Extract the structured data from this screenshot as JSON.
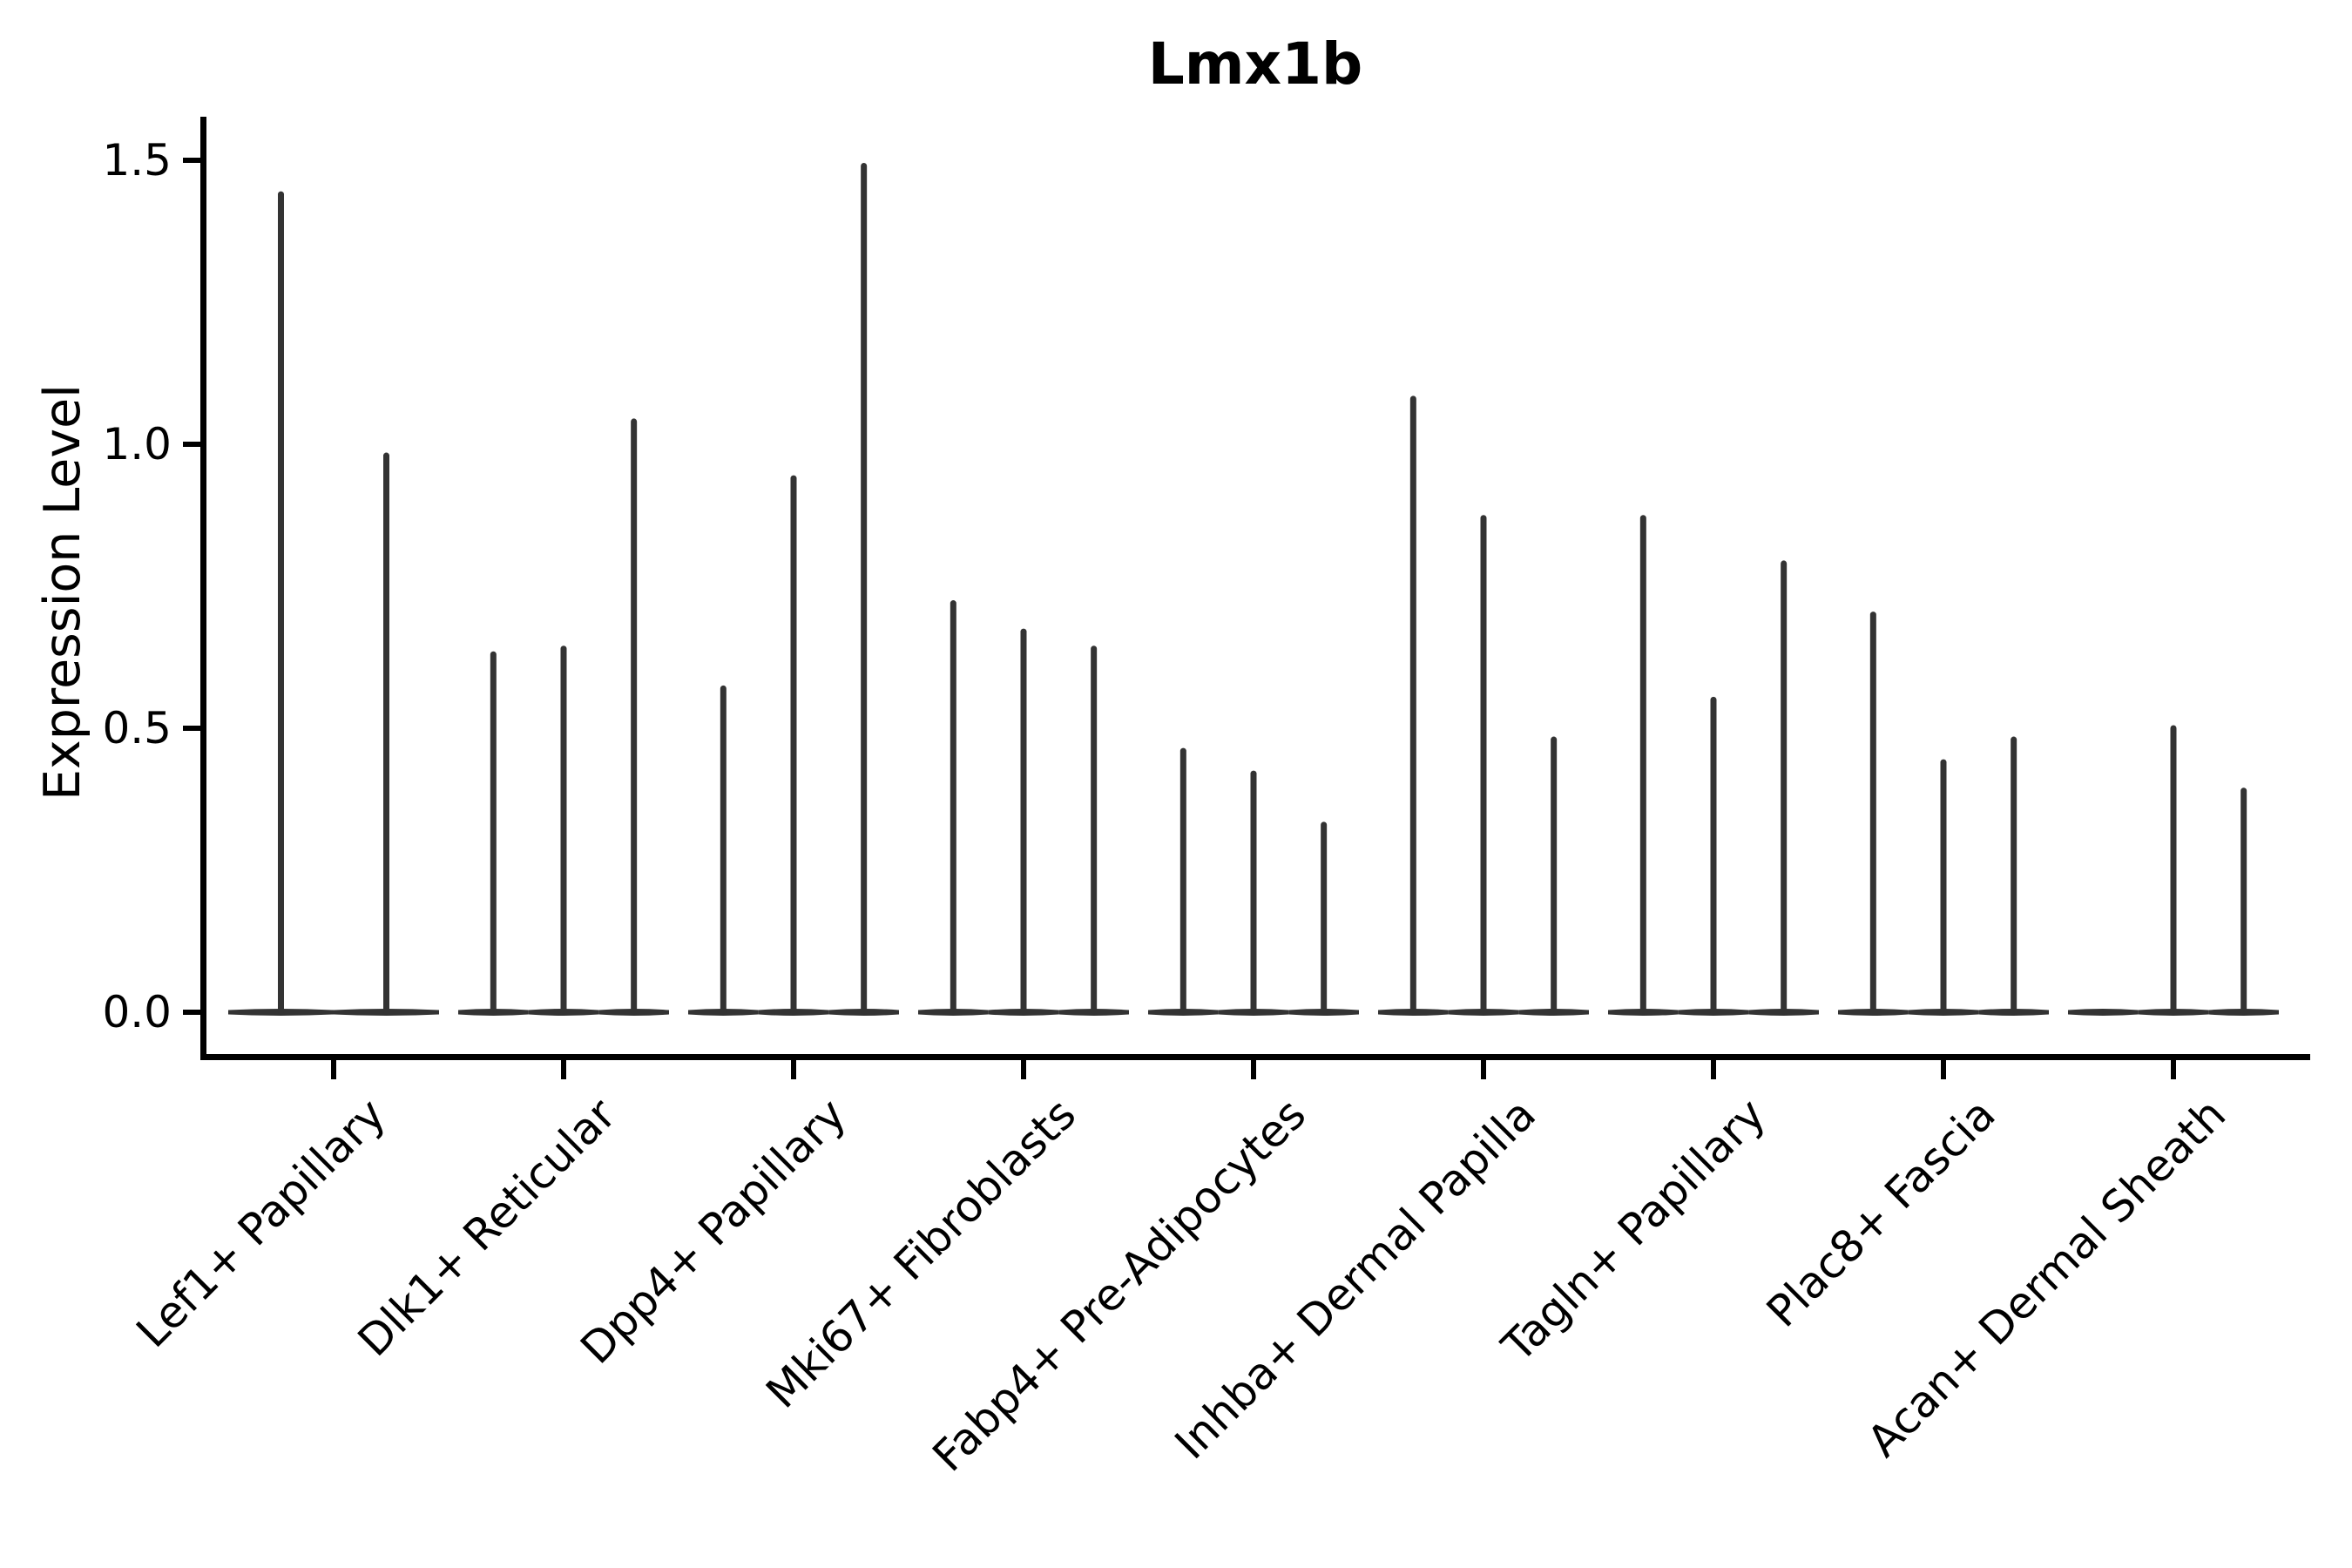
{
  "chart_data": {
    "type": "violin",
    "subtype": "needle-violin (flat base at 0 with thin density spikes)",
    "title": "Lmx1b",
    "xlabel": "",
    "ylabel": "Expression Level",
    "ylim": [
      0,
      1.58
    ],
    "grid": false,
    "legend_position": "none",
    "yticks": [
      {
        "value": 0.0,
        "label": "0.0"
      },
      {
        "value": 0.5,
        "label": "0.5"
      },
      {
        "value": 1.0,
        "label": "1.0"
      },
      {
        "value": 1.5,
        "label": "1.5"
      }
    ],
    "x_tick_rotation_deg": 45,
    "categories": [
      {
        "label": "Lef1+ Papillary",
        "violin_max_values": [
          1.44,
          0.98
        ]
      },
      {
        "label": "Dlk1+ Reticular",
        "violin_max_values": [
          0.63,
          0.64,
          1.04
        ]
      },
      {
        "label": "Dpp4+ Papillary",
        "violin_max_values": [
          0.57,
          0.94,
          1.49
        ]
      },
      {
        "label": "Mki67+ Fibroblasts",
        "violin_max_values": [
          0.72,
          0.67,
          0.64
        ]
      },
      {
        "label": "Fabp4+ Pre-Adipocytes",
        "violin_max_values": [
          0.46,
          0.42,
          0.33
        ]
      },
      {
        "label": "Inhba+ Dermal Papilla",
        "violin_max_values": [
          1.08,
          0.87,
          0.48
        ]
      },
      {
        "label": "Tagln+ Papillary",
        "violin_max_values": [
          0.87,
          0.55,
          0.79
        ]
      },
      {
        "label": "Plac8+ Fascia",
        "violin_max_values": [
          0.7,
          0.44,
          0.48
        ]
      },
      {
        "label": "Acan+ Dermal Sheath",
        "violin_max_values": [
          0.0,
          0.5,
          0.39
        ]
      }
    ],
    "colors": {
      "violin_line": "#333333",
      "axis": "#000000",
      "text": "#000000",
      "background": "#ffffff"
    }
  }
}
